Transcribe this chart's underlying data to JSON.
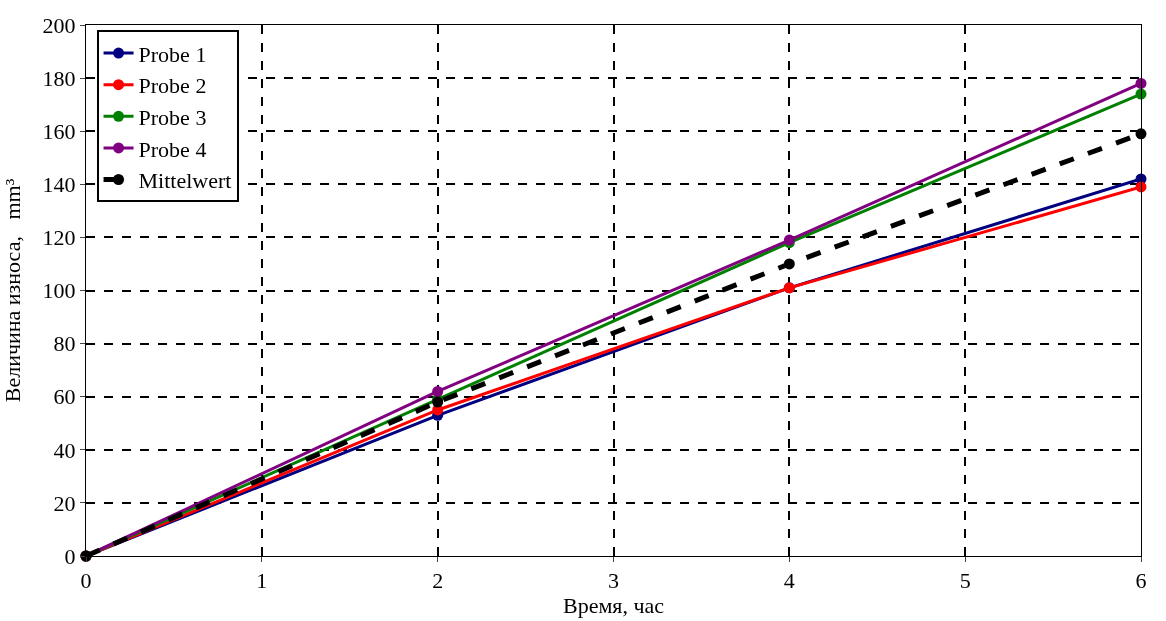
{
  "chart_data": {
    "type": "line",
    "xlabel": "Время, час",
    "ylabel": "Величина износа,   mm³",
    "x": [
      0,
      2,
      4,
      6
    ],
    "series": [
      {
        "name": "Probe 1",
        "color": "#000080",
        "values": [
          0,
          53,
          101,
          142
        ]
      },
      {
        "name": "Probe 2",
        "color": "#ff0000",
        "values": [
          0,
          55,
          101,
          139
        ]
      },
      {
        "name": "Probe 3",
        "color": "#008000",
        "values": [
          0,
          59,
          118,
          174
        ]
      },
      {
        "name": "Probe 4",
        "color": "#800080",
        "values": [
          0,
          62,
          119,
          178
        ]
      },
      {
        "name": "Mittelwert",
        "color": "#000000",
        "values": [
          0,
          58,
          110,
          159
        ],
        "line_style": "dashed"
      }
    ],
    "xlim": [
      0,
      6
    ],
    "xticks": [
      0,
      1,
      2,
      3,
      4,
      5,
      6
    ],
    "ylim": [
      0,
      200
    ],
    "yticks": [
      0,
      20,
      40,
      60,
      80,
      100,
      120,
      140,
      160,
      180,
      200
    ],
    "grid": true,
    "legend": "top left",
    "marker": "circle",
    "line_style": "solid"
  }
}
